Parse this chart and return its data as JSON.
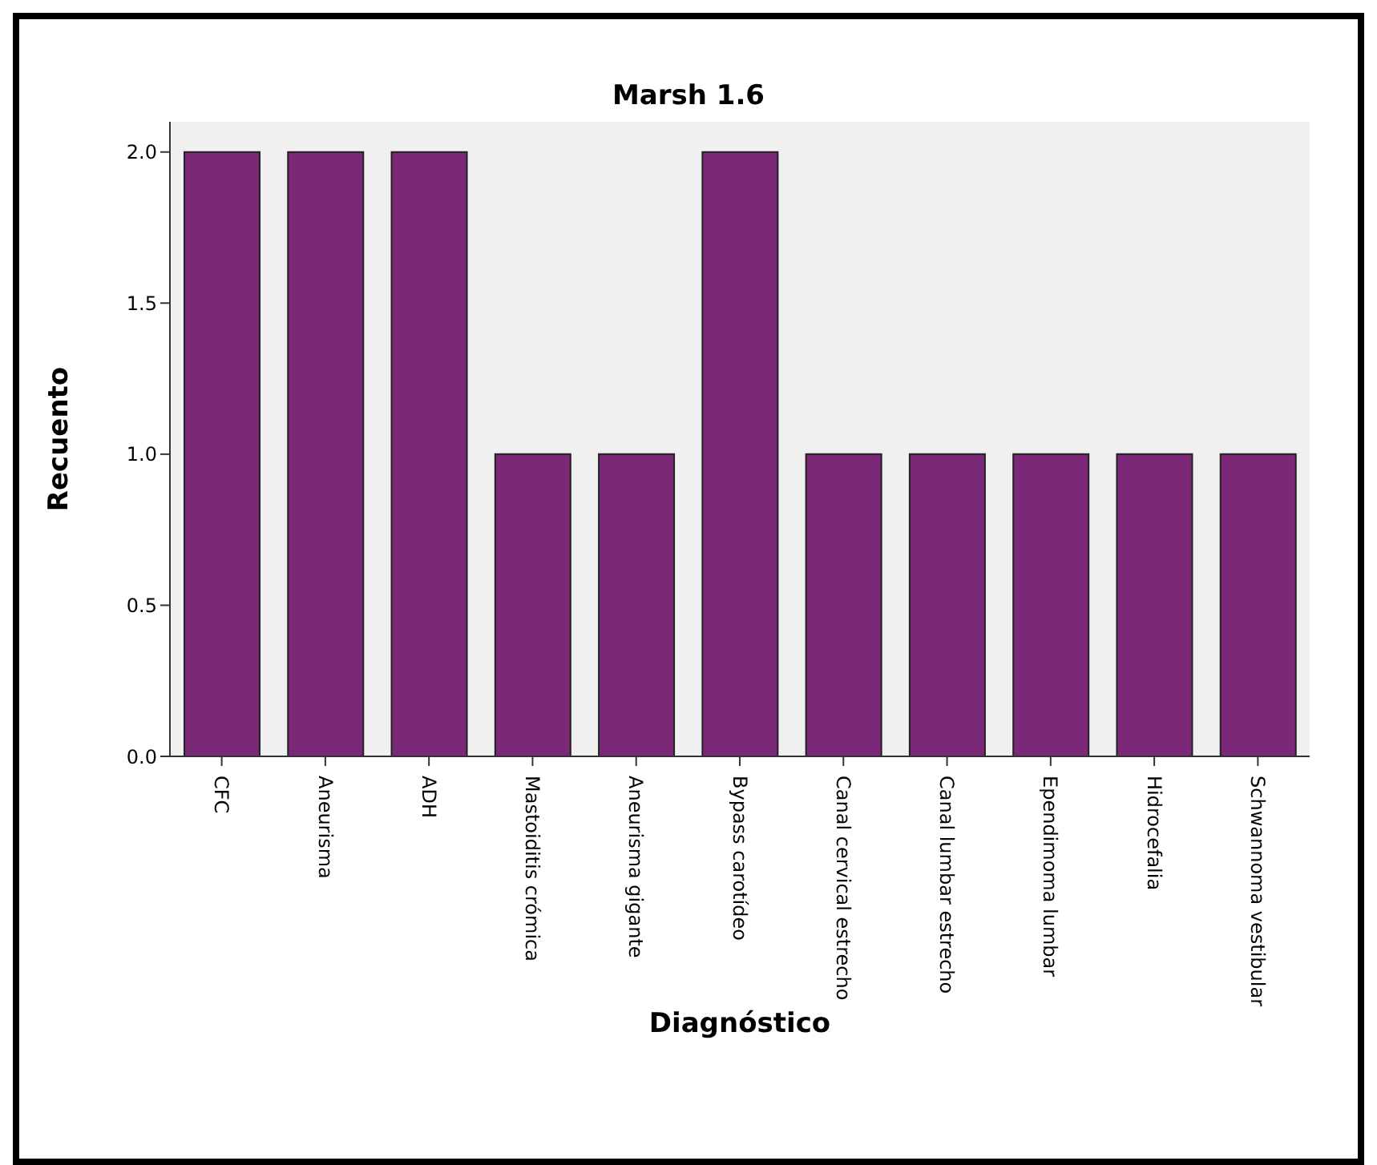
{
  "chart_data": {
    "type": "bar",
    "title": "Marsh 1.6",
    "xlabel": "Diagnóstico",
    "ylabel": "Recuento",
    "categories": [
      "CFC",
      "Aneurisma",
      "ADH",
      "Mastoiditis crómica",
      "Aneurisma gigante",
      "Bypass carotídeo",
      "Canal cervical estrecho",
      "Canal lumbar estrecho",
      "Ependimoma lumbar",
      "Hidrocefalia",
      "Schwannoma vestibular"
    ],
    "values": [
      2,
      2,
      2,
      1,
      1,
      2,
      1,
      1,
      1,
      1,
      1
    ],
    "color": "#7b2879",
    "ylim": [
      0,
      2.1
    ],
    "yticks": [
      {
        "value": 0,
        "label": "0.0"
      },
      {
        "value": 0.5,
        "label": "0.5"
      },
      {
        "value": 1,
        "label": "1.0"
      },
      {
        "value": 1.5,
        "label": "1.5"
      },
      {
        "value": 2,
        "label": "2.0"
      }
    ],
    "grid": false,
    "legend": false
  }
}
